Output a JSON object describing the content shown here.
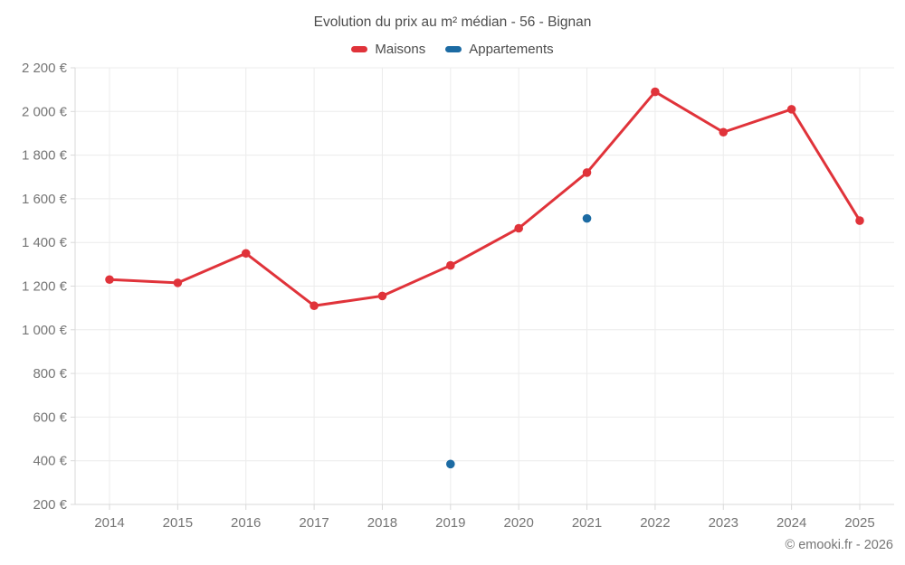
{
  "page": {
    "title": "Evolution du prix au m² médian - 56 - Bignan",
    "footer": "© emooki.fr - 2026"
  },
  "legend": {
    "items": [
      {
        "label": "Maisons",
        "color": "#e0333a"
      },
      {
        "label": "Appartements",
        "color": "#1c6ba3"
      }
    ]
  },
  "chart_data": {
    "type": "line",
    "title": "Evolution du prix au m² médian - 56 - Bignan",
    "categories": [
      2014,
      2015,
      2016,
      2017,
      2018,
      2019,
      2020,
      2021,
      2022,
      2023,
      2024,
      2025
    ],
    "series": [
      {
        "name": "Maisons",
        "type": "line",
        "color": "#e0333a",
        "values": [
          1230,
          1215,
          1350,
          1110,
          1155,
          1295,
          1465,
          1720,
          2090,
          1905,
          2010,
          1500
        ]
      },
      {
        "name": "Appartements",
        "type": "scatter",
        "color": "#1c6ba3",
        "points": [
          {
            "x": 2019,
            "y": 385
          },
          {
            "x": 2021,
            "y": 1510
          }
        ]
      }
    ],
    "ylim": [
      200,
      2200
    ],
    "ytick_step": 200,
    "y_suffix": " €",
    "grid": true,
    "legend_position": "top",
    "colors": {
      "grid": "#ececec",
      "axis": "#d9d9d9",
      "tick_text": "#757575"
    }
  }
}
